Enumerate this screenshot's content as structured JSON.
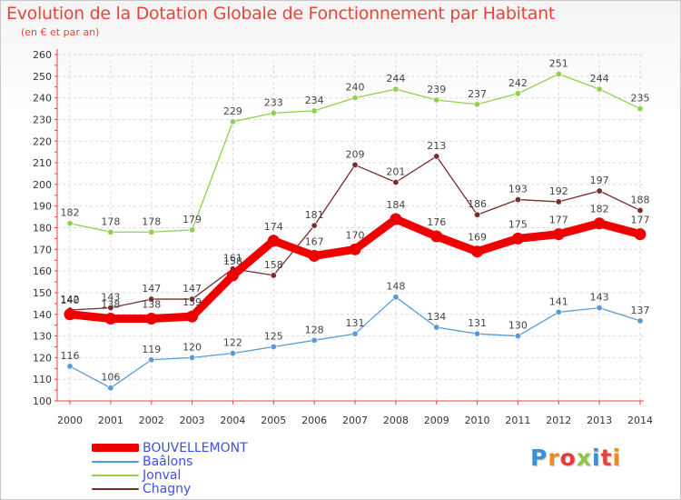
{
  "title": "Evolution de la Dotation Globale de Fonctionnement par Habitant",
  "subtitle": "(en € et par an)",
  "logo": {
    "text": "Proxiti",
    "colors": [
      "#3a8fd6",
      "#f08a1c",
      "#e83a3a",
      "#8dc63f",
      "#3a8fd6",
      "#e8443a",
      "#f08a1c"
    ]
  },
  "chart_data": {
    "type": "line",
    "title": "Evolution de la Dotation Globale de Fonctionnement par Habitant",
    "subtitle": "(en € et par an)",
    "xlabel": "",
    "ylabel": "",
    "x": [
      "2000",
      "2001",
      "2002",
      "2003",
      "2004",
      "2005",
      "2006",
      "2007",
      "2008",
      "2009",
      "2010",
      "2011",
      "2012",
      "2013",
      "2014"
    ],
    "ylim": [
      100,
      260
    ],
    "yticks": [
      100,
      110,
      120,
      130,
      140,
      150,
      160,
      170,
      180,
      190,
      200,
      210,
      220,
      230,
      240,
      250,
      260
    ],
    "grid": true,
    "legend_position": "bottom-left",
    "series": [
      {
        "name": "BOUVELLEMONT",
        "color": "#ee0000",
        "values": [
          140,
          138,
          138,
          139,
          158,
          174,
          167,
          170,
          184,
          176,
          169,
          175,
          177,
          182,
          177
        ]
      },
      {
        "name": "Baâlons",
        "color": "#5b9bd5",
        "values": [
          116,
          106,
          119,
          120,
          122,
          125,
          128,
          131,
          148,
          134,
          131,
          130,
          141,
          143,
          137
        ]
      },
      {
        "name": "Jonval",
        "color": "#8fd14f",
        "values": [
          182,
          178,
          178,
          179,
          229,
          233,
          234,
          240,
          244,
          239,
          237,
          242,
          251,
          244,
          235
        ]
      },
      {
        "name": "Chagny",
        "color": "#7a2b2b",
        "values": [
          142,
          143,
          147,
          147,
          161,
          158,
          181,
          209,
          201,
          213,
          186,
          193,
          192,
          197,
          188
        ]
      }
    ]
  }
}
